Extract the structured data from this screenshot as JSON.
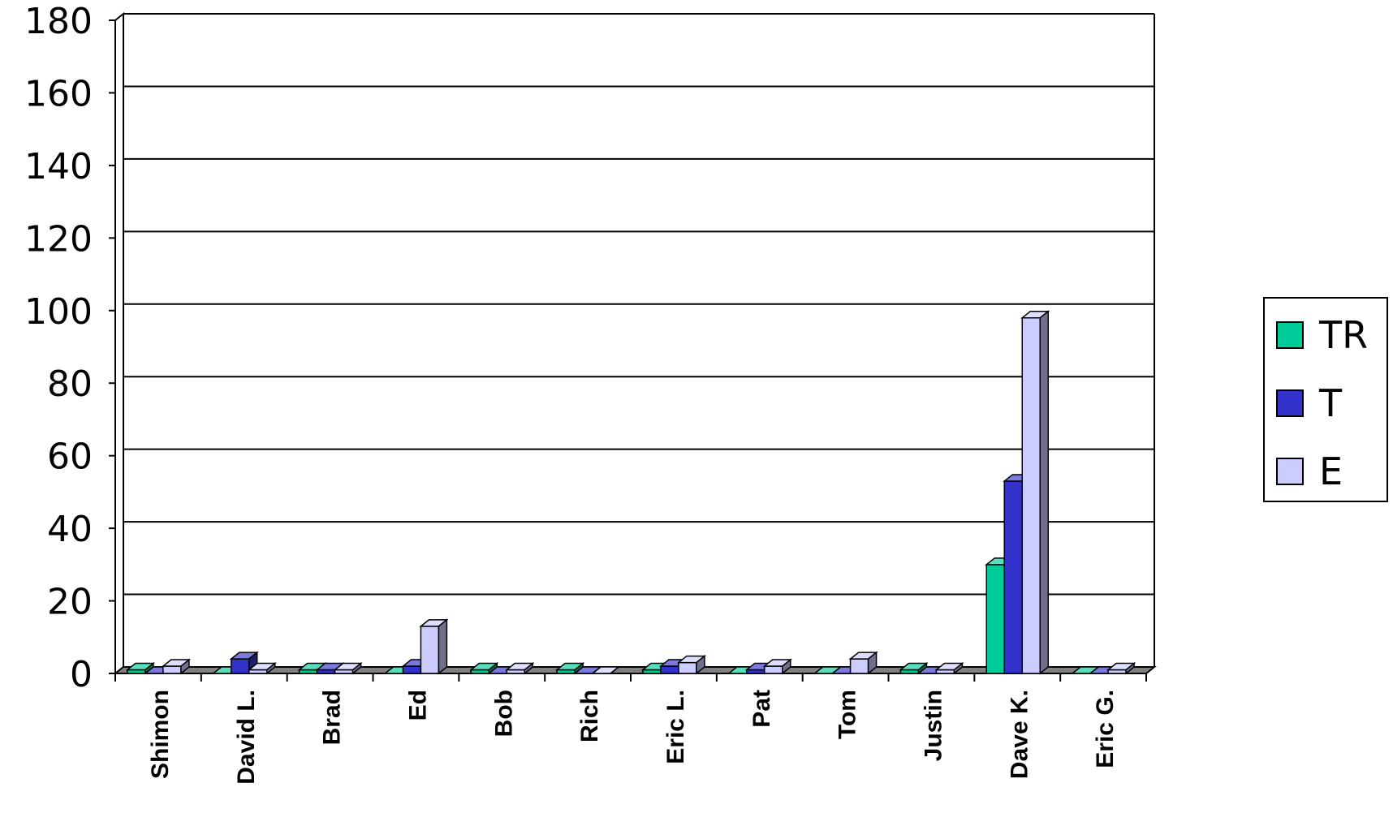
{
  "chart_data": {
    "type": "bar",
    "title": "",
    "xlabel": "",
    "ylabel": "",
    "ylim": [
      0,
      180
    ],
    "yticks": [
      0,
      20,
      40,
      60,
      80,
      100,
      120,
      140,
      160,
      180
    ],
    "grid": true,
    "legend_position": "right",
    "categories": [
      "Shimon",
      "David L.",
      "Brad",
      "Ed",
      "Bob",
      "Rich",
      "Eric L.",
      "Pat",
      "Tom",
      "Justin",
      "Dave K.",
      "Eric G."
    ],
    "series": [
      {
        "name": "TR",
        "color": "#00CC99",
        "values": [
          1,
          0,
          1,
          0,
          1,
          1,
          1,
          0,
          0,
          1,
          30,
          0
        ]
      },
      {
        "name": "T",
        "color": "#3333CC",
        "values": [
          0,
          4,
          1,
          2,
          0,
          0,
          2,
          1,
          0,
          0,
          53,
          0
        ]
      },
      {
        "name": "E",
        "color": "#CCCCFF",
        "values": [
          2,
          1,
          1,
          13,
          1,
          0,
          3,
          2,
          4,
          1,
          98,
          1
        ]
      }
    ]
  }
}
